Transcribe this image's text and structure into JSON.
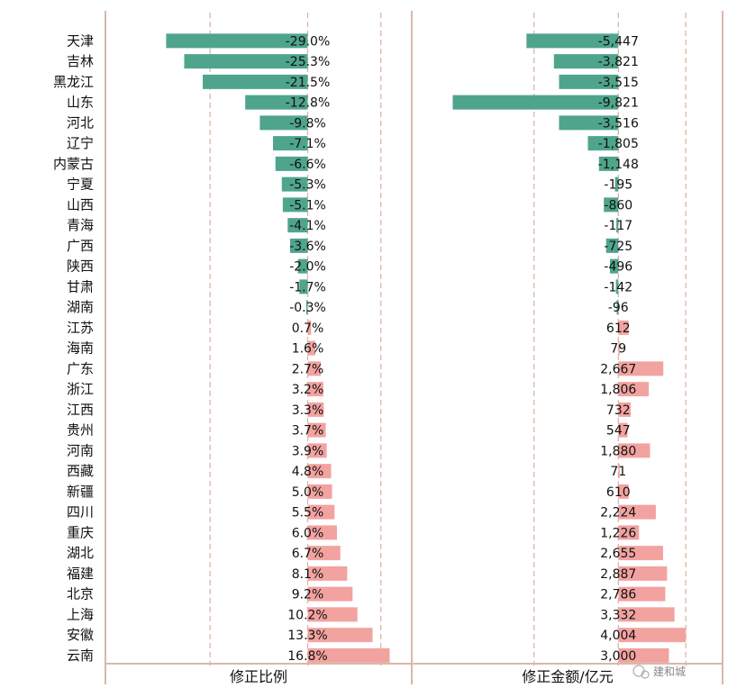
{
  "colors": {
    "negative": "#4fa58c",
    "positive": "#f2a3a0",
    "frame": "#d9b8aa",
    "grid_dash": "#d9b8aa"
  },
  "watermark": "建和城",
  "chart_data": [
    {
      "type": "bar",
      "orientation": "horizontal",
      "xlabel": "修正比例",
      "categories": [
        "天津",
        "吉林",
        "黑龙江",
        "山东",
        "河北",
        "辽宁",
        "内蒙古",
        "宁夏",
        "山西",
        "青海",
        "广西",
        "陕西",
        "甘肃",
        "湖南",
        "江苏",
        "海南",
        "广东",
        "浙江",
        "江西",
        "贵州",
        "河南",
        "西藏",
        "新疆",
        "四川",
        "重庆",
        "湖北",
        "福建",
        "北京",
        "上海",
        "安徽",
        "云南"
      ],
      "values": [
        -29.0,
        -25.3,
        -21.5,
        -12.8,
        -9.8,
        -7.1,
        -6.6,
        -5.3,
        -5.1,
        -4.1,
        -3.6,
        -2.0,
        -1.7,
        -0.3,
        0.7,
        1.6,
        2.7,
        3.2,
        3.3,
        3.7,
        3.9,
        4.8,
        5.0,
        5.5,
        6.0,
        6.7,
        8.1,
        9.2,
        10.2,
        13.3,
        16.8
      ],
      "labels": [
        "-29.0%",
        "-25.3%",
        "-21.5%",
        "-12.8%",
        "-9.8%",
        "-7.1%",
        "-6.6%",
        "-5.3%",
        "-5.1%",
        "-4.1%",
        "-3.6%",
        "-2.0%",
        "-1.7%",
        "-0.3%",
        "0.7%",
        "1.6%",
        "2.7%",
        "3.2%",
        "3.3%",
        "3.7%",
        "3.9%",
        "4.8%",
        "5.0%",
        "5.5%",
        "6.0%",
        "6.7%",
        "8.1%",
        "9.2%",
        "10.2%",
        "13.3%",
        "16.8%"
      ],
      "xlim": [
        -30,
        18
      ],
      "reference_lines": [
        -20,
        0,
        15
      ]
    },
    {
      "type": "bar",
      "orientation": "horizontal",
      "xlabel": "修正金额/亿元",
      "categories": [
        "天津",
        "吉林",
        "黑龙江",
        "山东",
        "河北",
        "辽宁",
        "内蒙古",
        "宁夏",
        "山西",
        "青海",
        "广西",
        "陕西",
        "甘肃",
        "湖南",
        "江苏",
        "海南",
        "广东",
        "浙江",
        "江西",
        "贵州",
        "河南",
        "西藏",
        "新疆",
        "四川",
        "重庆",
        "湖北",
        "福建",
        "北京",
        "上海",
        "安徽",
        "云南"
      ],
      "values": [
        -5447,
        -3821,
        -3515,
        -9821,
        -3516,
        -1805,
        -1148,
        -195,
        -860,
        -117,
        -725,
        -496,
        -142,
        -96,
        612,
        79,
        2667,
        1806,
        732,
        547,
        1880,
        71,
        610,
        2224,
        1226,
        2655,
        2887,
        2786,
        3332,
        4004,
        3000
      ],
      "labels": [
        "-5,447",
        "-3,821",
        "-3,515",
        "-9,821",
        "-3,516",
        "-1,805",
        "-1,148",
        "-195",
        "-860",
        "-117",
        "-725",
        "-496",
        "-142",
        "-96",
        "612",
        "79",
        "2,667",
        "1,806",
        "732",
        "547",
        "1,880",
        "71",
        "610",
        "2,224",
        "1,226",
        "2,655",
        "2,887",
        "2,786",
        "3,332",
        "4,004",
        "3,000"
      ],
      "xlim": [
        -9900,
        4900
      ],
      "reference_lines": [
        -5000,
        0,
        4000
      ]
    }
  ]
}
